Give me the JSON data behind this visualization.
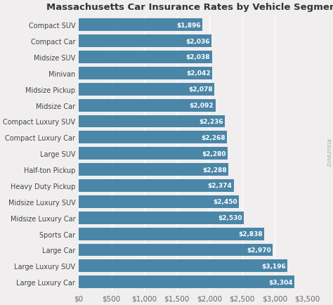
{
  "title": "Massachusetts Car Insurance Rates by Vehicle Segment",
  "categories": [
    "Compact SUV",
    "Compact Car",
    "Midsize SUV",
    "Minivan",
    "Midsize Pickup",
    "Midsize Car",
    "Compact Luxury SUV",
    "Compact Luxury Car",
    "Large SUV",
    "Half-ton Pickup",
    "Heavy Duty Pickup",
    "Midsize Luxury SUV",
    "Midsize Luxury Car",
    "Sports Car",
    "Large Car",
    "Large Luxury SUV",
    "Large Luxury Car"
  ],
  "values": [
    1896,
    2036,
    2038,
    2042,
    2078,
    2092,
    2236,
    2268,
    2280,
    2288,
    2374,
    2450,
    2530,
    2838,
    2970,
    3196,
    3304
  ],
  "bar_color": "#4a86a8",
  "label_color": "#ffffff",
  "background_color": "#f0eeee",
  "grid_color": "#ffffff",
  "title_color": "#333333",
  "xlim": [
    0,
    3500
  ],
  "xticks": [
    0,
    500,
    1000,
    1500,
    2000,
    2500,
    3000,
    3500
  ],
  "title_fontsize": 9.5,
  "tick_fontsize": 7.5,
  "label_fontsize": 7.0,
  "bar_label_fontsize": 6.5,
  "watermark": "insuraviz",
  "watermark_color": "#b0a8a8"
}
